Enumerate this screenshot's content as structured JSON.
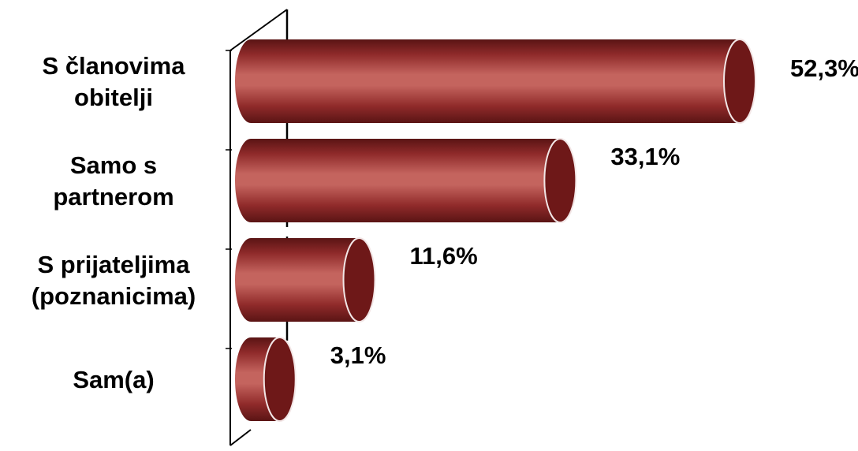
{
  "chart_data": {
    "type": "bar",
    "orientation": "horizontal",
    "style": "3d-cylinder",
    "categories": [
      [
        "S članovima",
        "obitelji"
      ],
      [
        "Samo s",
        "partnerom"
      ],
      [
        "S prijateljima",
        "(poznanicima)"
      ],
      [
        "Sam(a)"
      ]
    ],
    "values": [
      52.3,
      33.1,
      11.6,
      3.1
    ],
    "value_labels": [
      "52,3%",
      "33,1%",
      "11,6%",
      "3,1%"
    ],
    "xlim": [
      0,
      52.3
    ],
    "grid": false,
    "legend": "none",
    "title": "",
    "xlabel": "",
    "ylabel": ""
  },
  "colors": {
    "bar_dark": "#5a1414",
    "bar_mid": "#8f2a2a",
    "bar_light": "#c4645e",
    "cap_fill": "#6e1818",
    "cap_edge": "#f2e6e6",
    "axis": "#000000",
    "text": "#000000"
  }
}
